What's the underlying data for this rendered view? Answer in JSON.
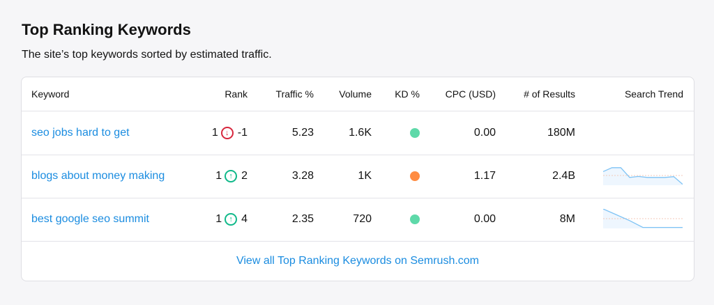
{
  "title": "Top Ranking Keywords",
  "subtitle": "The site’s top keywords sorted by estimated traffic.",
  "columns": [
    "Keyword",
    "Rank",
    "Traffic %",
    "Volume",
    "KD %",
    "CPC (USD)",
    "# of Results",
    "Search Trend"
  ],
  "rows": [
    {
      "keyword": "seo jobs hard to get",
      "rank": "1",
      "change": "-1",
      "direction": "down",
      "traffic": "5.23",
      "volume": "1.6K",
      "kd_color": "#5ed9a9",
      "cpc": "0.00",
      "results": "180M",
      "trend": []
    },
    {
      "keyword": "blogs about money making",
      "rank": "1",
      "change": "2",
      "direction": "up",
      "traffic": "3.28",
      "volume": "1K",
      "kd_color": "#ff8c42",
      "cpc": "1.17",
      "results": "2.4B",
      "trend": [
        70,
        90,
        90,
        40,
        45,
        40,
        40,
        40,
        44,
        5
      ]
    },
    {
      "keyword": "best google seo summit",
      "rank": "1",
      "change": "4",
      "direction": "up",
      "traffic": "2.35",
      "volume": "720",
      "kd_color": "#5ed9a9",
      "cpc": "0.00",
      "results": "8M",
      "trend": [
        100,
        70,
        40,
        5,
        5,
        5,
        5
      ]
    }
  ],
  "footer_link": "View all Top Ranking Keywords on Semrush.com",
  "colors": {
    "link": "#1a8ce0",
    "down": "#d7263d",
    "up": "#10b98a",
    "trend": "#7ec3f5"
  }
}
